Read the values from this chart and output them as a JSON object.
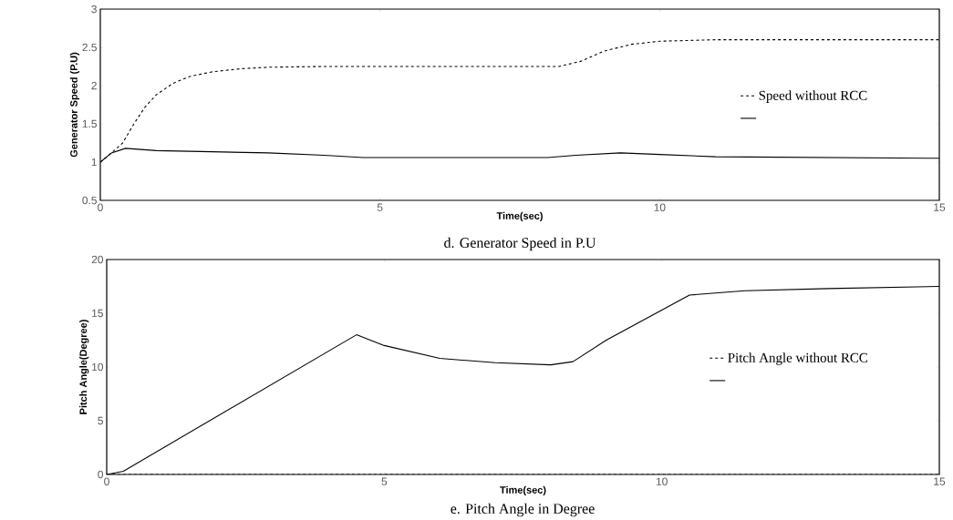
{
  "chart_data": [
    {
      "type": "line",
      "xlabel": "Time(sec)",
      "ylabel": "Generator Speed (P.U)",
      "annotations": [
        "d. Generator Speed in P.U"
      ],
      "xlim": [
        0,
        15
      ],
      "ylim": [
        0.5,
        3
      ],
      "xticks": [
        0,
        5,
        10,
        15
      ],
      "yticks": [
        0.5,
        1,
        1.5,
        2,
        2.5,
        3
      ],
      "grid": false,
      "legend": "right",
      "series": [
        {
          "name": "Speed without RCC",
          "color": "#000000",
          "line_style": "dashed",
          "x": [
            0,
            0.2,
            0.4,
            0.6,
            0.8,
            1.0,
            1.3,
            1.6,
            2,
            2.5,
            3,
            4,
            8.2,
            8.6,
            9,
            9.5,
            10,
            11,
            15
          ],
          "values": [
            1.0,
            1.12,
            1.25,
            1.5,
            1.72,
            1.88,
            2.03,
            2.12,
            2.18,
            2.22,
            2.24,
            2.25,
            2.25,
            2.32,
            2.45,
            2.54,
            2.58,
            2.6,
            2.6
          ]
        },
        {
          "color": "#000000",
          "line_style": "solid",
          "x": [
            0,
            0.2,
            0.45,
            1,
            3,
            4,
            4.7,
            8,
            8.5,
            9.3,
            10,
            11,
            15
          ],
          "values": [
            1.0,
            1.12,
            1.18,
            1.15,
            1.12,
            1.09,
            1.06,
            1.06,
            1.09,
            1.12,
            1.1,
            1.07,
            1.05
          ]
        }
      ]
    },
    {
      "type": "line",
      "xlabel": "Time(sec)",
      "ylabel": "Pitch Angle(Degree)",
      "annotations": [
        "e.  Pitch Angle in Degree"
      ],
      "xlim": [
        0,
        15
      ],
      "ylim": [
        0,
        20
      ],
      "xticks": [
        0,
        5,
        10,
        15
      ],
      "yticks": [
        0,
        5,
        10,
        15,
        20
      ],
      "grid": false,
      "legend": "right",
      "series": [
        {
          "name": "Pitch Angle without RCC",
          "color": "#000000",
          "line_style": "dashed",
          "x": [
            0,
            15
          ],
          "values": [
            0,
            0
          ]
        },
        {
          "color": "#000000",
          "line_style": "solid",
          "x": [
            0,
            0.3,
            4.5,
            5,
            6,
            7,
            8,
            8.4,
            9,
            10.5,
            11.5,
            13,
            15
          ],
          "values": [
            0,
            0.3,
            13,
            12,
            10.8,
            10.4,
            10.2,
            10.5,
            12.5,
            16.7,
            17.1,
            17.3,
            17.5
          ]
        }
      ]
    }
  ]
}
